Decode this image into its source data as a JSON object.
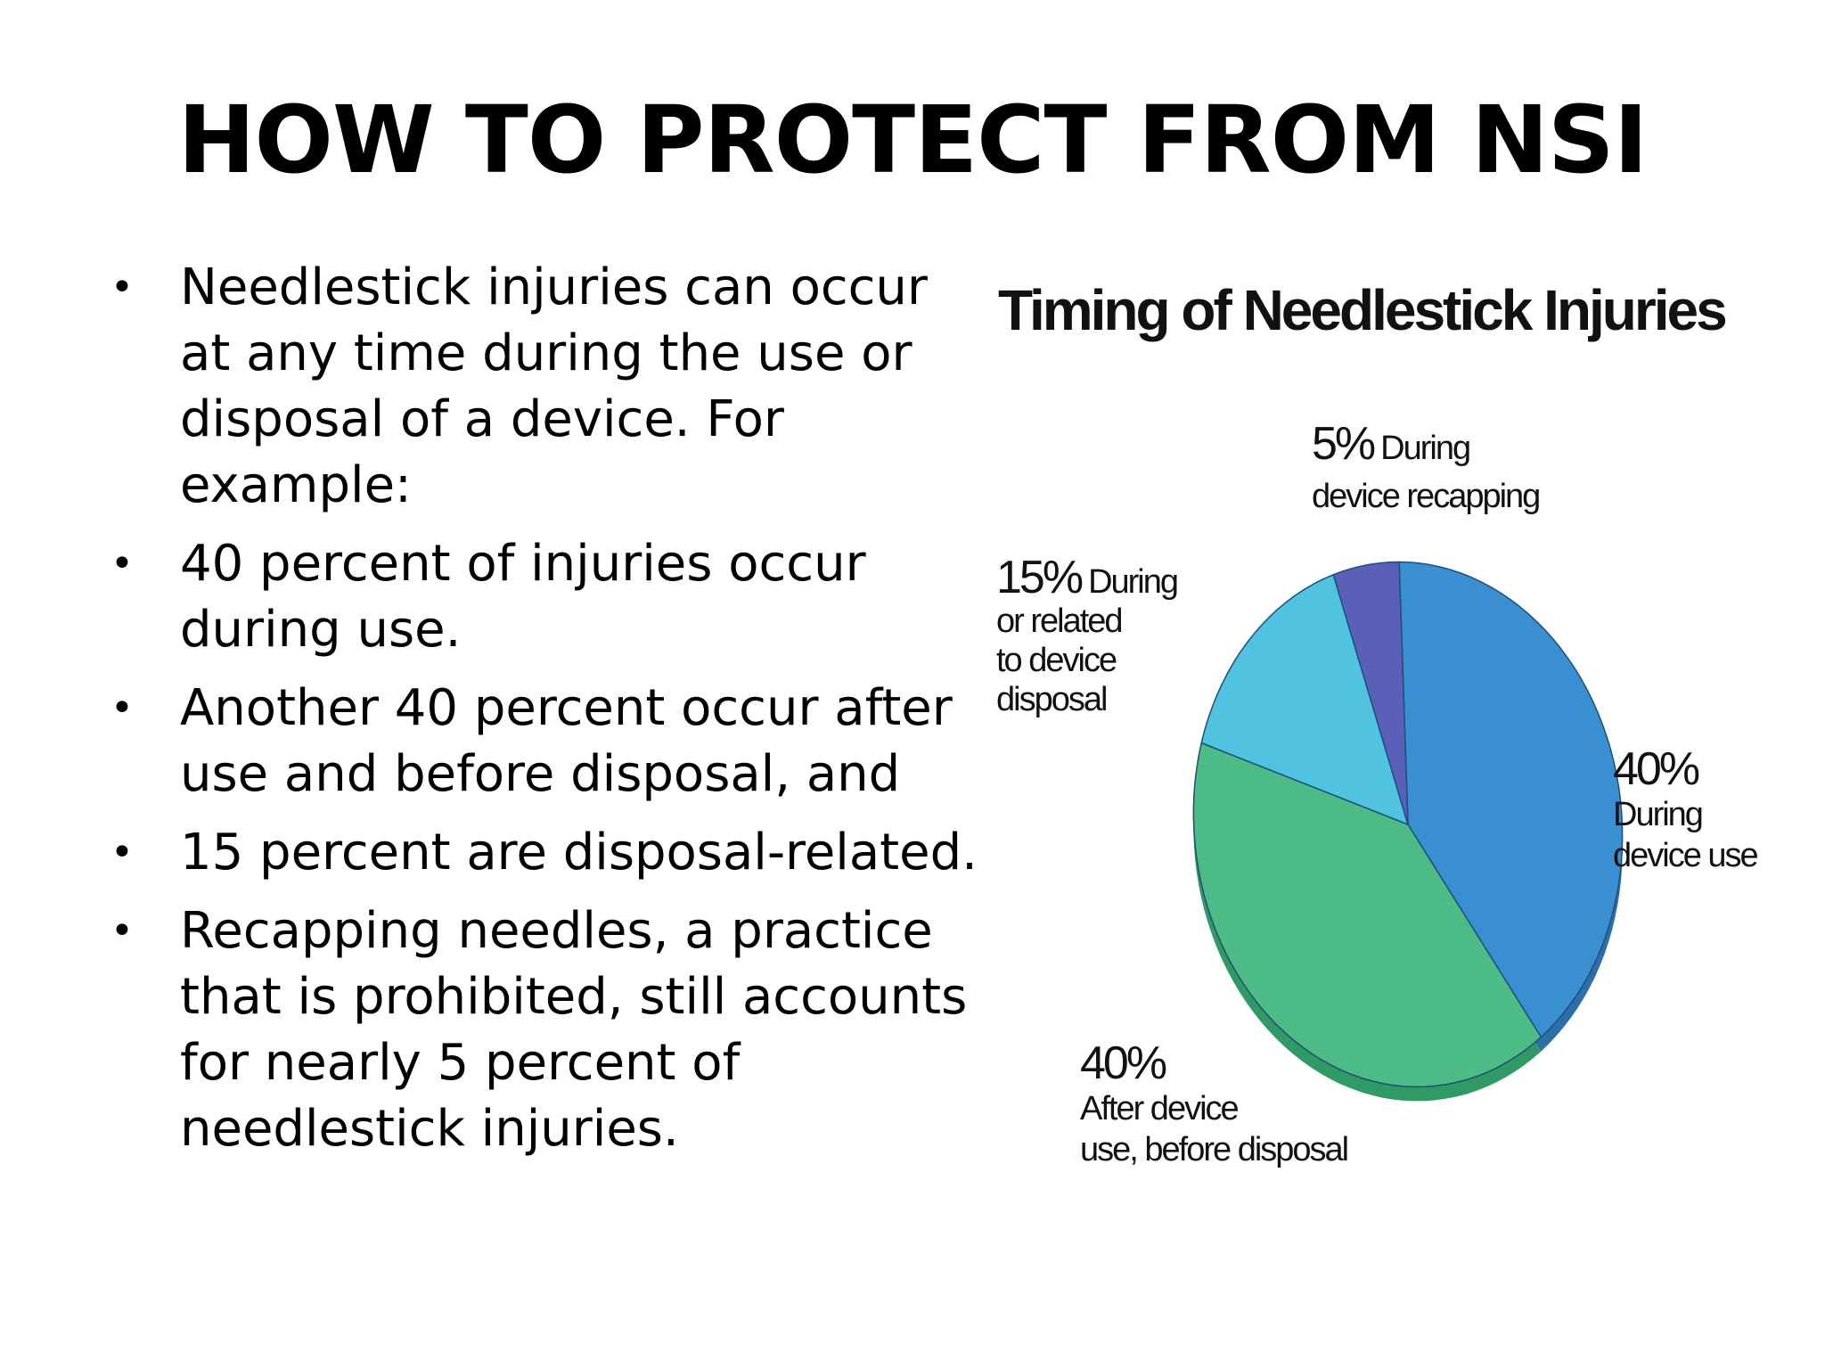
{
  "slide": {
    "title": "HOW TO PROTECT FROM NSI"
  },
  "bullets": [
    "Needlestick injuries can occur\nat any time during the use or\ndisposal of a device. For\nexample:",
    "40 percent of injuries occur\nduring use.",
    "Another 40 percent occur after\nuse and before disposal, and",
    "15 percent are disposal-related.",
    "Recapping needles, a practice\nthat is prohibited, still accounts\nfor nearly 5 percent of\nneedlestick injuries."
  ],
  "bullet_symbol": "•",
  "chart_data": {
    "type": "pie",
    "title": "Timing of Needlestick Injuries",
    "slices": [
      {
        "pct": "40%",
        "label_lines": [
          "During",
          "device use"
        ],
        "value": 40,
        "color": "#3a8fd0"
      },
      {
        "pct": "40%",
        "label_lines": [
          "After device",
          "use, before disposal"
        ],
        "value": 40,
        "color": "#4dbb85"
      },
      {
        "pct": "15%",
        "label_lines": [
          "During",
          "or related",
          "to device",
          "disposal"
        ],
        "value": 15,
        "color": "#4fc3e0"
      },
      {
        "pct": "5%",
        "label_lines": [
          "During",
          "device recapping"
        ],
        "value": 5,
        "color": "#5a5fb8"
      }
    ],
    "rim_colors": [
      "#2c6fa8",
      "#2f9a63",
      "#3aa5c2",
      "#484c98"
    ]
  }
}
